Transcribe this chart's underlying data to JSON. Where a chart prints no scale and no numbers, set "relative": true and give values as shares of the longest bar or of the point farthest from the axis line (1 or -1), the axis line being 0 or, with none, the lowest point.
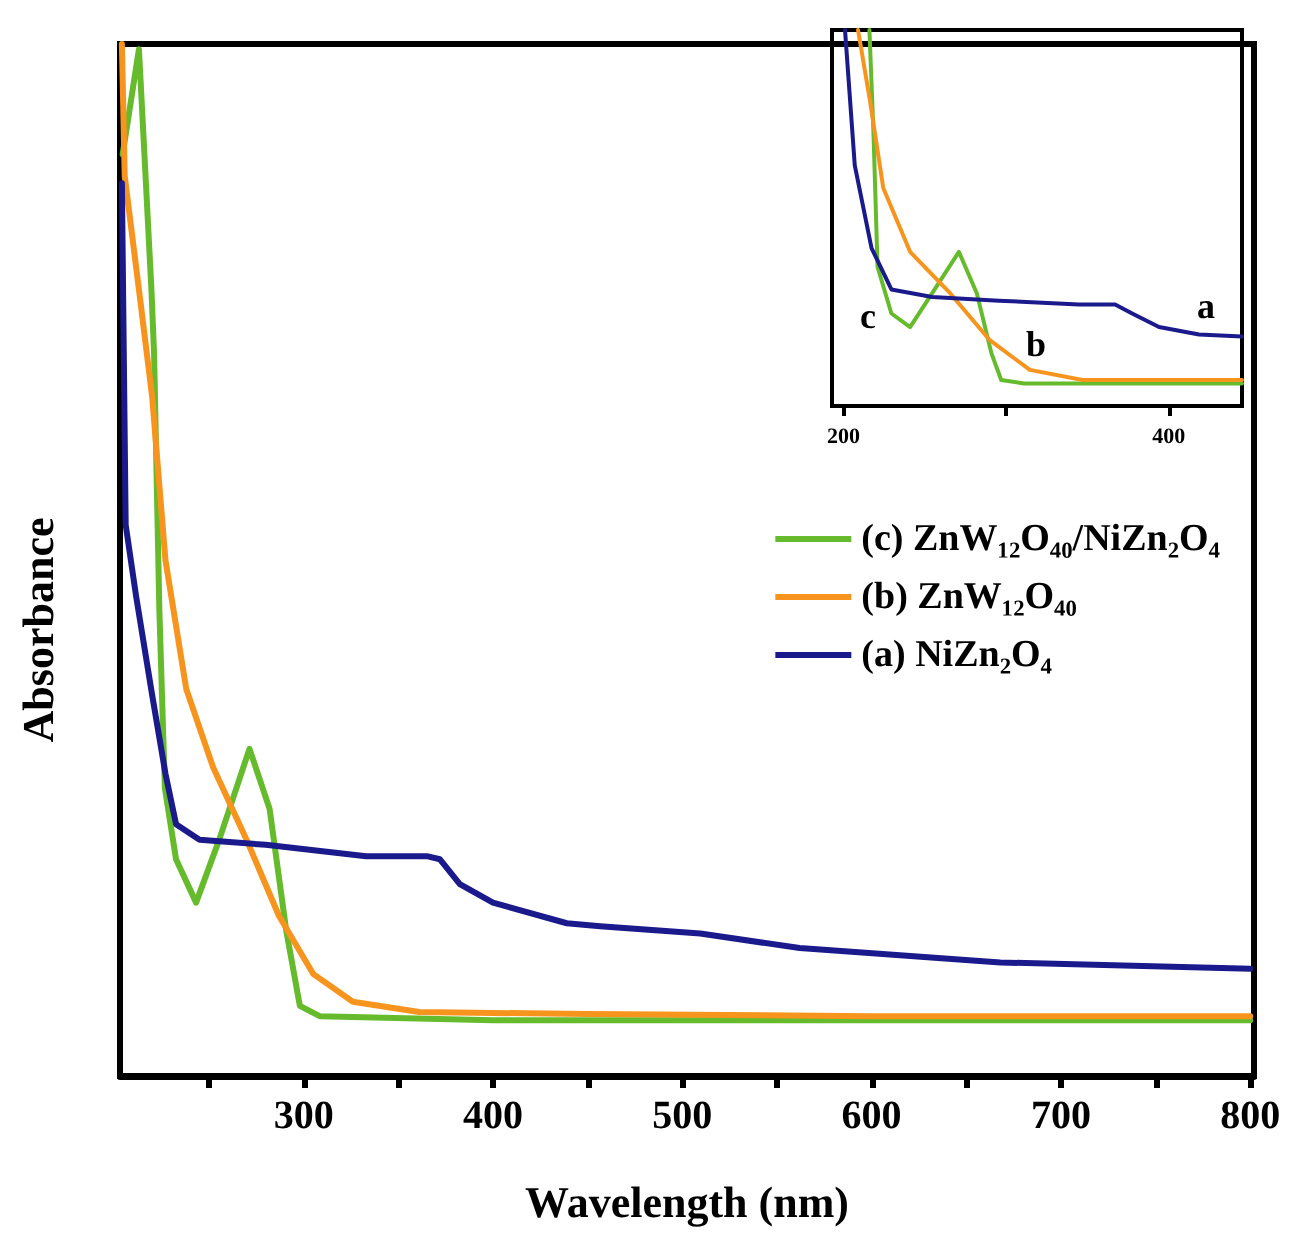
{
  "chart_data": [
    {
      "type": "line",
      "xlabel": "Wavelength (nm)",
      "ylabel": "Absorbance",
      "relative": true,
      "xlim": [
        203,
        802
      ],
      "xticks": [
        {
          "value": 250,
          "label": null
        },
        300,
        {
          "value": 350,
          "label": null
        },
        400,
        {
          "value": 450,
          "label": null
        },
        500,
        {
          "value": 550,
          "label": null
        },
        600,
        {
          "value": 650,
          "label": null
        },
        700,
        {
          "value": 750,
          "label": null
        },
        800
      ],
      "tick_labels": "x",
      "grid": false,
      "legend": "right",
      "marker": "none",
      "line_style": "solid",
      "series": [
        {
          "name": "(c) ZnW₁₂O₄₀/NiZn₂O₄",
          "color": "#66bb2c",
          "x": [
            204.4,
            213,
            216.7,
            219.6,
            221,
            223.8,
            226.7,
            232.6,
            243.2,
            255.6,
            271.4,
            282,
            290.8,
            298,
            308.5,
            400,
            500,
            600,
            700,
            800
          ],
          "values": [
            0.893,
            0.995,
            0.865,
            0.762,
            0.7,
            0.451,
            0.279,
            0.21,
            0.168,
            0.23,
            0.317,
            0.259,
            0.141,
            0.068,
            0.058,
            0.054,
            0.054,
            0.054,
            0.054,
            0.054
          ]
        },
        {
          "name": "(b) ZnW₁₂O₄₀",
          "color": "#f7941d",
          "x": [
            204,
            205.5,
            213,
            220,
            227,
            238,
            252,
            269.6,
            287,
            305,
            326,
            361,
            450,
            600,
            800
          ],
          "values": [
            1.0,
            0.872,
            0.762,
            0.658,
            0.5,
            0.375,
            0.3,
            0.23,
            0.155,
            0.099,
            0.072,
            0.062,
            0.06,
            0.058,
            0.058
          ]
        },
        {
          "name": "(a) NiZn₂O₄",
          "color": "#1a1a8c",
          "x": [
            204,
            206,
            211.5,
            220,
            227,
            232.6,
            245,
            280,
            333,
            365,
            372,
            382.5,
            400,
            439,
            456.6,
            509.5,
            562,
            668,
            800
          ],
          "values": [
            0.865,
            0.534,
            0.465,
            0.369,
            0.293,
            0.244,
            0.229,
            0.224,
            0.213,
            0.213,
            0.21,
            0.186,
            0.168,
            0.148,
            0.145,
            0.138,
            0.124,
            0.11,
            0.104
          ]
        }
      ]
    },
    {
      "type": "line",
      "relative": true,
      "xlim": [
        193,
        445
      ],
      "xticks": [
        200,
        {
          "value": 300,
          "label": null
        },
        400
      ],
      "tick_labels": "x",
      "grid": false,
      "marker": "none",
      "line_style": "solid",
      "annotations": [
        "a",
        "b",
        "c"
      ],
      "series": [
        {
          "color": "#66bb2c",
          "x": [
            216,
            218.5,
            221,
            229.5,
            241,
            254.6,
            271,
            282,
            291,
            297,
            311,
            445
          ],
          "values": [
            1.0,
            0.725,
            0.37,
            0.246,
            0.21,
            0.3,
            0.41,
            0.3,
            0.14,
            0.069,
            0.06,
            0.06
          ]
        },
        {
          "color": "#f7941d",
          "x": [
            209,
            216.4,
            224.5,
            241,
            265.6,
            290,
            314.6,
            347,
            445
          ],
          "values": [
            1.0,
            0.81,
            0.58,
            0.41,
            0.3,
            0.175,
            0.096,
            0.069,
            0.069
          ]
        },
        {
          "color": "#1a1a8c",
          "x": [
            201,
            207,
            217.3,
            229.5,
            254.6,
            295.6,
            344.8,
            367,
            377.5,
            394,
            418.6,
            445
          ],
          "values": [
            1.0,
            0.64,
            0.42,
            0.31,
            0.29,
            0.28,
            0.27,
            0.27,
            0.246,
            0.21,
            0.19,
            0.185
          ]
        }
      ]
    }
  ]
}
